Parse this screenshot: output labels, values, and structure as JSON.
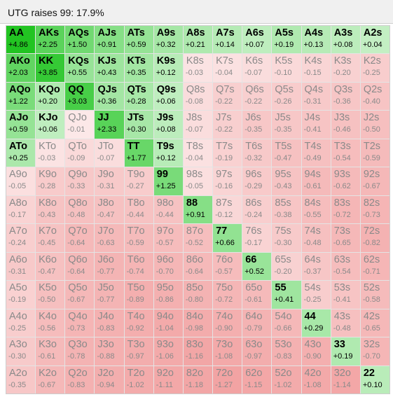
{
  "title": "UTG raises 99: 17.9%",
  "colors": {
    "positive": "#22c422",
    "negative": "#f2a3a3",
    "separator": "#e4e4e4"
  },
  "grid": [
    [
      [
        "AA",
        "+4.86"
      ],
      [
        "AKs",
        "+2.25"
      ],
      [
        "AQs",
        "+1.50"
      ],
      [
        "AJs",
        "+0.91"
      ],
      [
        "ATs",
        "+0.59"
      ],
      [
        "A9s",
        "+0.32"
      ],
      [
        "A8s",
        "+0.21"
      ],
      [
        "A7s",
        "+0.14"
      ],
      [
        "A6s",
        "+0.07"
      ],
      [
        "A5s",
        "+0.19"
      ],
      [
        "A4s",
        "+0.13"
      ],
      [
        "A3s",
        "+0.08"
      ],
      [
        "A2s",
        "+0.04"
      ]
    ],
    [
      [
        "AKo",
        "+2.03"
      ],
      [
        "KK",
        "+3.85"
      ],
      [
        "KQs",
        "+0.55"
      ],
      [
        "KJs",
        "+0.43"
      ],
      [
        "KTs",
        "+0.35"
      ],
      [
        "K9s",
        "+0.12"
      ],
      [
        "K8s",
        "-0.03"
      ],
      [
        "K7s",
        "-0.04"
      ],
      [
        "K6s",
        "-0.07"
      ],
      [
        "K5s",
        "-0.10"
      ],
      [
        "K4s",
        "-0.15"
      ],
      [
        "K3s",
        "-0.20"
      ],
      [
        "K2s",
        "-0.25"
      ]
    ],
    [
      [
        "AQo",
        "+1.22"
      ],
      [
        "KQo",
        "+0.20"
      ],
      [
        "QQ",
        "+3.03"
      ],
      [
        "QJs",
        "+0.36"
      ],
      [
        "QTs",
        "+0.28"
      ],
      [
        "Q9s",
        "+0.06"
      ],
      [
        "Q8s",
        "-0.08"
      ],
      [
        "Q7s",
        "-0.22"
      ],
      [
        "Q6s",
        "-0.22"
      ],
      [
        "Q5s",
        "-0.26"
      ],
      [
        "Q4s",
        "-0.31"
      ],
      [
        "Q3s",
        "-0.36"
      ],
      [
        "Q2s",
        "-0.40"
      ]
    ],
    [
      [
        "AJo",
        "+0.59"
      ],
      [
        "KJo",
        "+0.06"
      ],
      [
        "QJo",
        "-0.01"
      ],
      [
        "JJ",
        "+2.33"
      ],
      [
        "JTs",
        "+0.30"
      ],
      [
        "J9s",
        "+0.08"
      ],
      [
        "J8s",
        "-0.07"
      ],
      [
        "J7s",
        "-0.22"
      ],
      [
        "J6s",
        "-0.35"
      ],
      [
        "J5s",
        "-0.35"
      ],
      [
        "J4s",
        "-0.41"
      ],
      [
        "J3s",
        "-0.46"
      ],
      [
        "J2s",
        "-0.50"
      ]
    ],
    [
      [
        "ATo",
        "+0.25"
      ],
      [
        "KTo",
        "-0.03"
      ],
      [
        "QTo",
        "-0.09"
      ],
      [
        "JTo",
        "-0.07"
      ],
      [
        "TT",
        "+1.77"
      ],
      [
        "T9s",
        "+0.12"
      ],
      [
        "T8s",
        "-0.04"
      ],
      [
        "T7s",
        "-0.19"
      ],
      [
        "T6s",
        "-0.32"
      ],
      [
        "T5s",
        "-0.47"
      ],
      [
        "T4s",
        "-0.49"
      ],
      [
        "T3s",
        "-0.54"
      ],
      [
        "T2s",
        "-0.59"
      ]
    ],
    [
      [
        "A9o",
        "-0.05"
      ],
      [
        "K9o",
        "-0.28"
      ],
      [
        "Q9o",
        "-0.33"
      ],
      [
        "J9o",
        "-0.31"
      ],
      [
        "T9o",
        "-0.27"
      ],
      [
        "99",
        "+1.25"
      ],
      [
        "98s",
        "-0.05"
      ],
      [
        "97s",
        "-0.16"
      ],
      [
        "96s",
        "-0.29"
      ],
      [
        "95s",
        "-0.43"
      ],
      [
        "94s",
        "-0.61"
      ],
      [
        "93s",
        "-0.62"
      ],
      [
        "92s",
        "-0.67"
      ]
    ],
    [
      [
        "A8o",
        "-0.17"
      ],
      [
        "K8o",
        "-0.43"
      ],
      [
        "Q8o",
        "-0.48"
      ],
      [
        "J8o",
        "-0.47"
      ],
      [
        "T8o",
        "-0.44"
      ],
      [
        "98o",
        "-0.44"
      ],
      [
        "88",
        "+0.91"
      ],
      [
        "87s",
        "-0.12"
      ],
      [
        "86s",
        "-0.24"
      ],
      [
        "85s",
        "-0.38"
      ],
      [
        "84s",
        "-0.55"
      ],
      [
        "83s",
        "-0.72"
      ],
      [
        "82s",
        "-0.73"
      ]
    ],
    [
      [
        "A7o",
        "-0.24"
      ],
      [
        "K7o",
        "-0.45"
      ],
      [
        "Q7o",
        "-0.64"
      ],
      [
        "J7o",
        "-0.63"
      ],
      [
        "T7o",
        "-0.59"
      ],
      [
        "97o",
        "-0.57"
      ],
      [
        "87o",
        "-0.52"
      ],
      [
        "77",
        "+0.66"
      ],
      [
        "76s",
        "-0.17"
      ],
      [
        "75s",
        "-0.30"
      ],
      [
        "74s",
        "-0.48"
      ],
      [
        "73s",
        "-0.65"
      ],
      [
        "72s",
        "-0.82"
      ]
    ],
    [
      [
        "A6o",
        "-0.31"
      ],
      [
        "K6o",
        "-0.47"
      ],
      [
        "Q6o",
        "-0.64"
      ],
      [
        "J6o",
        "-0.77"
      ],
      [
        "T6o",
        "-0.74"
      ],
      [
        "96o",
        "-0.70"
      ],
      [
        "86o",
        "-0.64"
      ],
      [
        "76o",
        "-0.57"
      ],
      [
        "66",
        "+0.52"
      ],
      [
        "65s",
        "-0.20"
      ],
      [
        "64s",
        "-0.37"
      ],
      [
        "63s",
        "-0.54"
      ],
      [
        "62s",
        "-0.71"
      ]
    ],
    [
      [
        "A5o",
        "-0.19"
      ],
      [
        "K5o",
        "-0.50"
      ],
      [
        "Q5o",
        "-0.67"
      ],
      [
        "J5o",
        "-0.77"
      ],
      [
        "T5o",
        "-0.89"
      ],
      [
        "95o",
        "-0.86"
      ],
      [
        "85o",
        "-0.80"
      ],
      [
        "75o",
        "-0.72"
      ],
      [
        "65o",
        "-0.61"
      ],
      [
        "55",
        "+0.41"
      ],
      [
        "54s",
        "-0.25"
      ],
      [
        "53s",
        "-0.41"
      ],
      [
        "52s",
        "-0.58"
      ]
    ],
    [
      [
        "A4o",
        "-0.25"
      ],
      [
        "K4o",
        "-0.56"
      ],
      [
        "Q4o",
        "-0.73"
      ],
      [
        "J4o",
        "-0.83"
      ],
      [
        "T4o",
        "-0.92"
      ],
      [
        "94o",
        "-1.04"
      ],
      [
        "84o",
        "-0.98"
      ],
      [
        "74o",
        "-0.90"
      ],
      [
        "64o",
        "-0.79"
      ],
      [
        "54o",
        "-0.66"
      ],
      [
        "44",
        "+0.29"
      ],
      [
        "43s",
        "-0.48"
      ],
      [
        "42s",
        "-0.65"
      ]
    ],
    [
      [
        "A3o",
        "-0.30"
      ],
      [
        "K3o",
        "-0.61"
      ],
      [
        "Q3o",
        "-0.78"
      ],
      [
        "J3o",
        "-0.88"
      ],
      [
        "T3o",
        "-0.97"
      ],
      [
        "93o",
        "-1.06"
      ],
      [
        "83o",
        "-1.16"
      ],
      [
        "73o",
        "-1.08"
      ],
      [
        "63o",
        "-0.97"
      ],
      [
        "53o",
        "-0.83"
      ],
      [
        "43o",
        "-0.90"
      ],
      [
        "33",
        "+0.19"
      ],
      [
        "32s",
        "-0.70"
      ]
    ],
    [
      [
        "A2o",
        "-0.35"
      ],
      [
        "K2o",
        "-0.67"
      ],
      [
        "Q2o",
        "-0.83"
      ],
      [
        "J2o",
        "-0.94"
      ],
      [
        "T2o",
        "-1.02"
      ],
      [
        "92o",
        "-1.11"
      ],
      [
        "82o",
        "-1.18"
      ],
      [
        "72o",
        "-1.27"
      ],
      [
        "62o",
        "-1.15"
      ],
      [
        "52o",
        "-1.02"
      ],
      [
        "42o",
        "-1.08"
      ],
      [
        "32o",
        "-1.14"
      ],
      [
        "22",
        "+0.10"
      ]
    ]
  ]
}
